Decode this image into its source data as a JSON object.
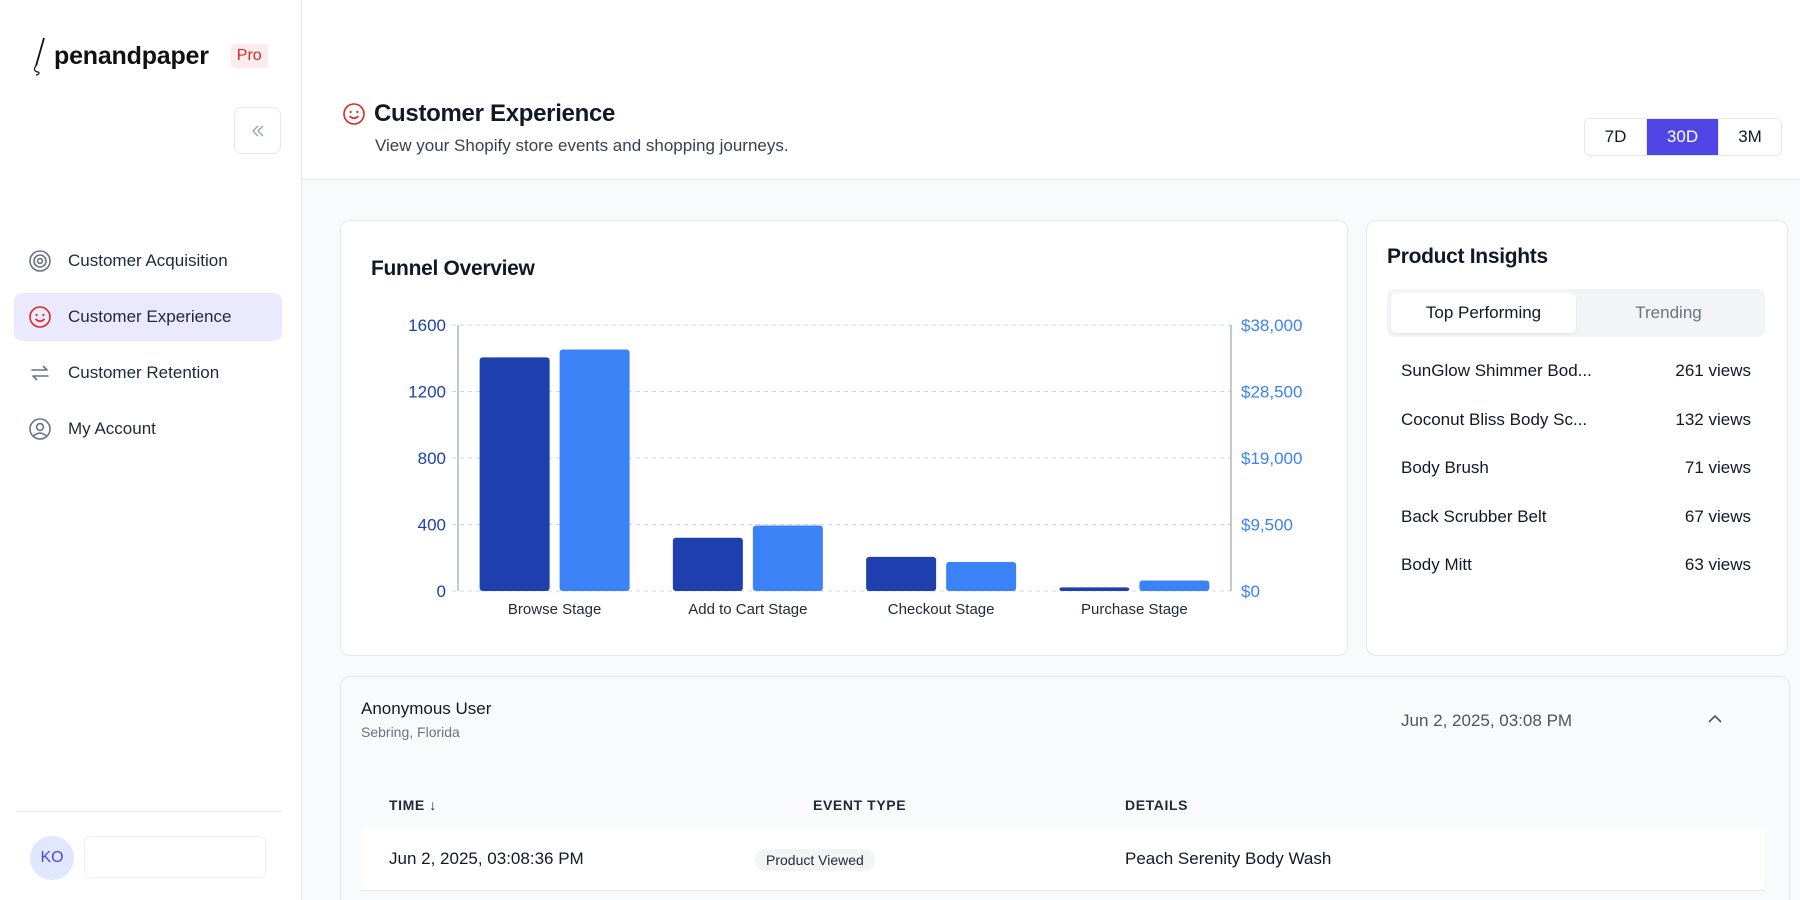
{
  "brand": {
    "name": "penandpaper",
    "badge": "Pro"
  },
  "sidebar": {
    "items": [
      {
        "label": "Customer Acquisition",
        "icon": "target-icon",
        "active": false
      },
      {
        "label": "Customer Experience",
        "icon": "smiley-icon",
        "active": true
      },
      {
        "label": "Customer Retention",
        "icon": "repeat-icon",
        "active": false
      },
      {
        "label": "My Account",
        "icon": "user-circle-icon",
        "active": false
      }
    ],
    "user_initials": "KO"
  },
  "header": {
    "title": "Customer Experience",
    "subtitle": "View your Shopify store events and shopping journeys.",
    "ranges": [
      "7D",
      "30D",
      "3M"
    ],
    "selected_range": "30D"
  },
  "funnel": {
    "title": "Funnel Overview"
  },
  "chart_data": {
    "type": "bar",
    "title": "Funnel Overview",
    "categories": [
      "Browse Stage",
      "Add to Cart Stage",
      "Checkout Stage",
      "Purchase Stage"
    ],
    "series": [
      {
        "values": [
          1405,
          320,
          205,
          22
        ],
        "axis": "left",
        "color": "#1e40af"
      },
      {
        "values": [
          34500,
          9350,
          4150,
          1500
        ],
        "axis": "right",
        "color": "#3b82f6"
      }
    ],
    "y_left": {
      "ticks": [
        "0",
        "400",
        "800",
        "1200",
        "1600"
      ],
      "ylim": [
        0,
        1600
      ],
      "color": "#1e40af"
    },
    "y_right": {
      "ticks": [
        "$0",
        "$9,500",
        "$19,000",
        "$28,500",
        "$38,000"
      ],
      "ylim": [
        0,
        38000
      ],
      "color": "#3b82f6"
    },
    "grid": true
  },
  "insights": {
    "title": "Product Insights",
    "tabs": [
      "Top Performing",
      "Trending"
    ],
    "active_tab": "Top Performing",
    "products": [
      {
        "name": "SunGlow Shimmer Bod...",
        "views": "261 views"
      },
      {
        "name": "Coconut Bliss Body Sc...",
        "views": "132 views"
      },
      {
        "name": "Body Brush",
        "views": "71 views"
      },
      {
        "name": "Back Scrubber Belt",
        "views": "67 views"
      },
      {
        "name": "Body Mitt",
        "views": "63 views"
      }
    ]
  },
  "session": {
    "user": "Anonymous User",
    "location": "Sebring, Florida",
    "time": "Jun 2, 2025, 03:08 PM",
    "columns": {
      "time": "TIME ↓",
      "event_type": "EVENT TYPE",
      "details": "DETAILS"
    },
    "rows": [
      {
        "time": "Jun 2, 2025, 03:08:36 PM",
        "event_type": "Product Viewed",
        "details": "Peach Serenity Body Wash"
      }
    ]
  }
}
